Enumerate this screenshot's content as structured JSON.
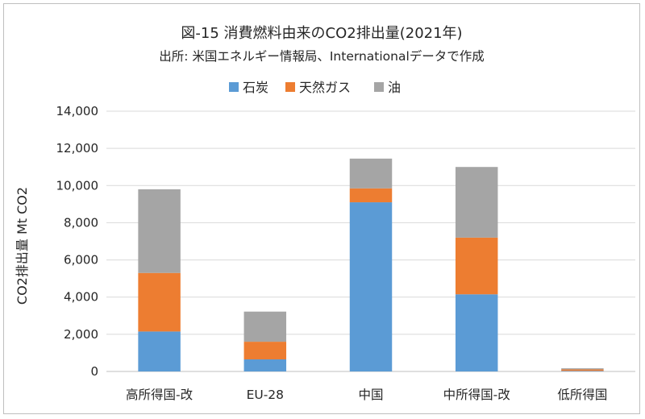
{
  "chart_data": {
    "type": "bar",
    "stacked": true,
    "title": "図-15 消費燃料由来のCO2排出量(2021年)",
    "subtitle": "出所: 米国エネルギー情報局、Internationalデータで作成",
    "ylabel": "CO2排出量 Mt CO2",
    "xlabel": "",
    "ylim": [
      0,
      14000
    ],
    "yticks": [
      0,
      2000,
      4000,
      6000,
      8000,
      10000,
      12000,
      14000
    ],
    "ytick_labels": [
      "0",
      "2,000",
      "4,000",
      "6,000",
      "8,000",
      "10,000",
      "12,000",
      "14,000"
    ],
    "categories": [
      "高所得国-改",
      "EU-28",
      "中国",
      "中所得国-改",
      "低所得国"
    ],
    "series": [
      {
        "name": "石炭",
        "color": "#5b9bd5",
        "values": [
          2150,
          650,
          9100,
          4150,
          30
        ]
      },
      {
        "name": "天然ガス",
        "color": "#ed7d31",
        "values": [
          3150,
          950,
          750,
          3050,
          80
        ]
      },
      {
        "name": "油",
        "color": "#a5a5a5",
        "values": [
          4500,
          1620,
          1600,
          3800,
          60
        ]
      }
    ],
    "legend_position": "top",
    "grid": true
  }
}
